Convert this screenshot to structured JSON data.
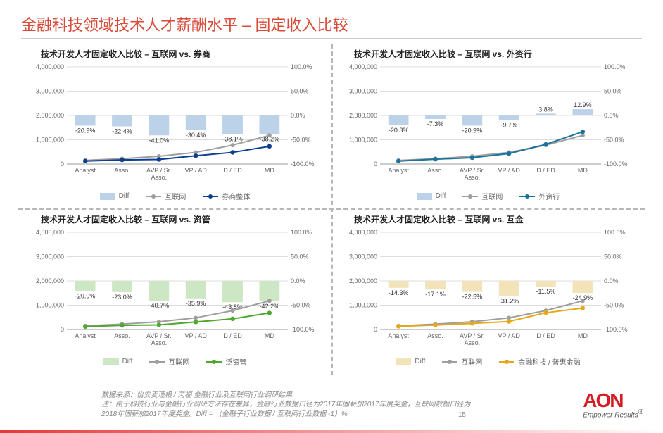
{
  "title": "金融科技领域技术人才薪酬水平 – 固定收入比较",
  "title_color": "#d94a38",
  "page_number": "15",
  "brand": {
    "name": "AON",
    "tagline": "Empower Results",
    "reg": "®",
    "color": "#d31e25"
  },
  "footnotes": [
    "数据来源：怡安麦理根 / 芮福 金融行业及互联网行业调研结果",
    "注：由于科技行业与金融行业调研方法存在差异，金融行业数据口径为2017年固薪加2017年度奖金，互联网数据口径为",
    "2018年固薪加2017年度奖金。Diff = （金融子行业数据 / 互联网行业数据 -1）%"
  ],
  "common": {
    "categories": [
      "Analyst",
      "Asso.",
      "AVP / Sr. Asso.",
      "VP / AD",
      "D / ED",
      "MD"
    ],
    "internet_values": [
      150000,
      220000,
      320000,
      480000,
      780000,
      1180000
    ],
    "left_axis": {
      "min": 0,
      "max": 4000000,
      "step": 1000000
    },
    "right_axis": {
      "min": -100,
      "max": 100,
      "step": 50,
      "suffix": "%"
    },
    "grid_color": "#dddddd",
    "axis_text_color": "#666666",
    "axis_fontsize": 9,
    "legend_fontsize": 10,
    "internet_color": "#9e9e9e",
    "internet_legend_label": "互联网"
  },
  "charts": [
    {
      "title": "技术开发人才固定收入比较 – 互联网 vs. 券商",
      "diff_color": "#bcd2e8",
      "series_color": "#0b3d91",
      "series_legend": "券商整体",
      "diff_values": [
        -20.9,
        -22.4,
        -41.0,
        -30.4,
        -38.1,
        -38.2
      ],
      "series_values": [
        120000,
        170000,
        190000,
        340000,
        480000,
        730000
      ]
    },
    {
      "title": "技术开发人才固定收入比较 – 互联网 vs. 外资行",
      "diff_color": "#bcd2e8",
      "series_color": "#1b739b",
      "series_legend": "外资行",
      "diff_values": [
        -20.3,
        -7.3,
        -20.9,
        -9.7,
        3.8,
        12.9
      ],
      "series_values": [
        120000,
        200000,
        260000,
        430000,
        810000,
        1330000
      ]
    },
    {
      "title": "技术开发人才固定收入比较 – 互联网 vs. 资管",
      "diff_color": "#cde6c4",
      "series_color": "#4ea82e",
      "series_legend": "泛资管",
      "diff_values": [
        -20.9,
        -23.0,
        -40.7,
        -35.9,
        -43.8,
        -42.2
      ],
      "series_values": [
        120000,
        170000,
        190000,
        310000,
        440000,
        680000
      ]
    },
    {
      "title": "技术开发人才固定收入比较 – 互联网 vs. 互金",
      "diff_color": "#f3e3b9",
      "series_color": "#e6a817",
      "series_legend": "金融科技 / 普惠金融",
      "diff_values": [
        -14.3,
        -17.1,
        -22.5,
        -31.2,
        -11.5,
        -24.9
      ],
      "series_values": [
        130000,
        180000,
        250000,
        330000,
        690000,
        880000
      ]
    }
  ]
}
